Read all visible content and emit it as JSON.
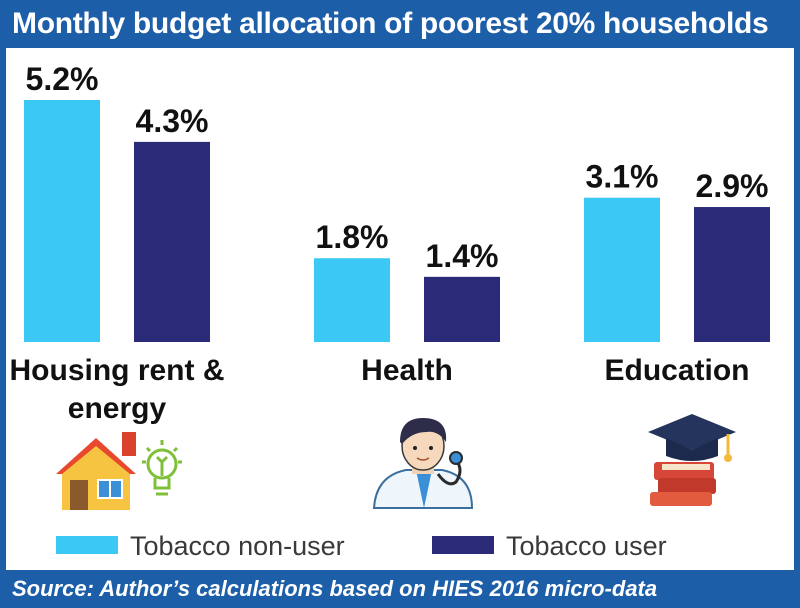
{
  "title": "Monthly budget allocation of poorest 20% households",
  "source": "Source: Author’s calculations based on HIES 2016 micro-data",
  "colors": {
    "frame": "#1d5ea8",
    "non_user": "#3cc8f4",
    "user": "#2b2a78"
  },
  "icons": [
    "house-icon",
    "lightbulb-icon",
    "doctor-icon",
    "graduation-books-icon"
  ],
  "chart_data": {
    "type": "bar",
    "categories": [
      "Housing rent & energy",
      "Health",
      "Education"
    ],
    "category_lines": [
      [
        "Housing rent &",
        "energy"
      ],
      [
        "Health"
      ],
      [
        "Education"
      ]
    ],
    "series": [
      {
        "name": "Tobacco non-user",
        "values": [
          5.2,
          1.8,
          3.1
        ],
        "labels": [
          "5.2%",
          "1.8%",
          "3.1%"
        ],
        "color": "#3cc8f4"
      },
      {
        "name": "Tobacco user",
        "values": [
          4.3,
          1.4,
          2.9
        ],
        "labels": [
          "4.3%",
          "1.4%",
          "2.9%"
        ],
        "color": "#2b2a78"
      }
    ],
    "ylim": [
      0,
      5.2
    ],
    "unit": "%",
    "legend": "bottom"
  }
}
